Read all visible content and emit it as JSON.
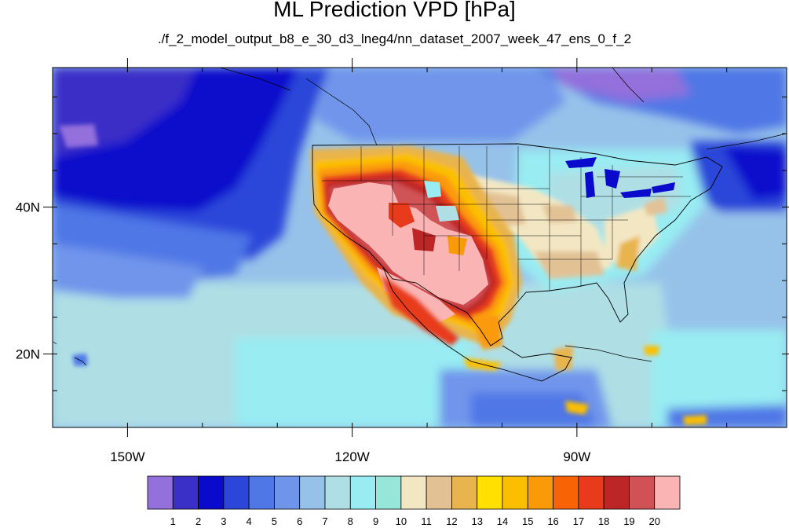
{
  "title": "ML Prediction VPD [hPa]",
  "subtitle": "./f_2_model_output_b8_e_30_d3_lneg4/nn_dataset_2007_week_47_ens_0_f_2",
  "map": {
    "lon_range": [
      -160,
      -62
    ],
    "lat_range": [
      10,
      59
    ],
    "x_tick_labels": [
      {
        "lon": -150,
        "label": "150W"
      },
      {
        "lon": -120,
        "label": "120W"
      },
      {
        "lon": -90,
        "label": "90W"
      }
    ],
    "y_tick_labels": [
      {
        "lat": 20,
        "label": "20N"
      },
      {
        "lat": 40,
        "label": "40N"
      }
    ],
    "minor_lon_ticks": [
      -160,
      -150,
      -140,
      -130,
      -120,
      -110,
      -100,
      -90,
      -80,
      -70
    ],
    "minor_lat_ticks": [
      15,
      20,
      25,
      30,
      35,
      40,
      45,
      50,
      55
    ]
  },
  "colorbar": {
    "labels": [
      "1",
      "2",
      "3",
      "4",
      "5",
      "6",
      "7",
      "8",
      "9",
      "10",
      "11",
      "12",
      "13",
      "14",
      "15",
      "16",
      "17",
      "18",
      "19",
      "20"
    ],
    "colors": [
      "#9370db",
      "#3a2fc7",
      "#0a0acc",
      "#2c46d9",
      "#4f77e6",
      "#6f95eb",
      "#96c2ea",
      "#afdfe5",
      "#98ecf2",
      "#96e6d9",
      "#f3e7c3",
      "#e2c295",
      "#e8b44e",
      "#ffe000",
      "#fbbf00",
      "#fb9a09",
      "#f86405",
      "#e73b1b",
      "#bd2626",
      "#d05256",
      "#fab4b4"
    ]
  }
}
